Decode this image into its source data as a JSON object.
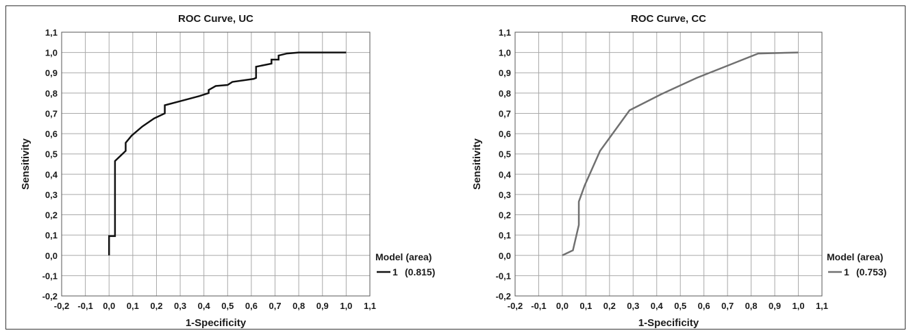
{
  "chart_data": [
    {
      "type": "line",
      "title": "ROC Curve, UC",
      "xlabel": "1-Specificity",
      "ylabel": "Sensitivity",
      "xlim": [
        -0.2,
        1.1
      ],
      "ylim": [
        -0.2,
        1.1
      ],
      "ticks": [
        "-0,2",
        "-0,1",
        "0,0",
        "0,1",
        "0,2",
        "0,3",
        "0,4",
        "0,5",
        "0,6",
        "0,7",
        "0,8",
        "0,9",
        "1,0",
        "1,1"
      ],
      "grid": true,
      "legend_position": "right",
      "legend_title": "Model (area)",
      "series": [
        {
          "name": "1",
          "area_label": "(0.815)",
          "color": "#111111",
          "x": [
            0.0,
            0.0,
            0.025,
            0.025,
            0.07,
            0.07,
            0.095,
            0.14,
            0.19,
            0.235,
            0.235,
            0.3,
            0.38,
            0.42,
            0.42,
            0.45,
            0.5,
            0.52,
            0.61,
            0.62,
            0.62,
            0.685,
            0.685,
            0.715,
            0.715,
            0.75,
            0.8,
            1.0
          ],
          "y": [
            0.0,
            0.095,
            0.095,
            0.465,
            0.515,
            0.555,
            0.59,
            0.635,
            0.675,
            0.7,
            0.74,
            0.76,
            0.785,
            0.8,
            0.815,
            0.835,
            0.84,
            0.855,
            0.87,
            0.875,
            0.93,
            0.945,
            0.965,
            0.965,
            0.985,
            0.995,
            1.0,
            1.0
          ]
        }
      ]
    },
    {
      "type": "line",
      "title": "ROC Curve, CC",
      "xlabel": "1-Specificity",
      "ylabel": "Sensitivity",
      "xlim": [
        -0.2,
        1.1
      ],
      "ylim": [
        -0.2,
        1.1
      ],
      "ticks": [
        "-0,2",
        "-0,1",
        "0,0",
        "0,1",
        "0,2",
        "0,3",
        "0,4",
        "0,5",
        "0,6",
        "0,7",
        "0,8",
        "0,9",
        "1,0",
        "1,1"
      ],
      "grid": true,
      "legend_position": "right",
      "legend_title": "Model (area)",
      "series": [
        {
          "name": "1",
          "area_label": "(0.753)",
          "color": "#707070",
          "x": [
            0.0,
            0.045,
            0.07,
            0.07,
            0.095,
            0.16,
            0.285,
            0.42,
            0.57,
            0.7,
            0.83,
            1.0
          ],
          "y": [
            0.0,
            0.025,
            0.15,
            0.265,
            0.345,
            0.515,
            0.715,
            0.795,
            0.875,
            0.935,
            0.995,
            1.0
          ]
        }
      ]
    }
  ]
}
